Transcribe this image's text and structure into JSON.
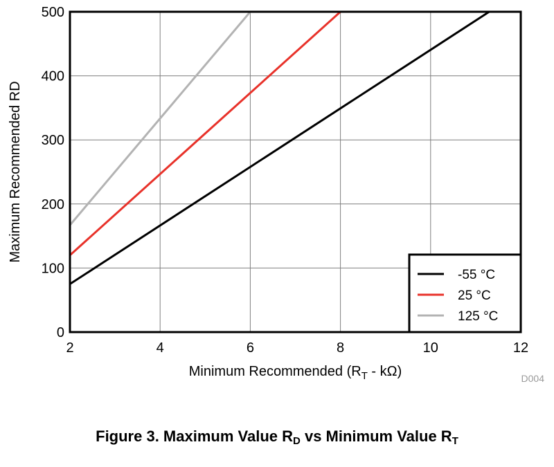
{
  "chart_data": {
    "type": "line",
    "xlabel": {
      "main": "Minimum Recommended (R",
      "sub": "T",
      "tail": " - kΩ)"
    },
    "ylabel": "Maximum Recommended RD",
    "xlim": [
      2,
      12
    ],
    "ylim": [
      0,
      500
    ],
    "xticks": [
      2,
      4,
      6,
      8,
      10,
      12
    ],
    "yticks": [
      0,
      100,
      200,
      300,
      400,
      500
    ],
    "grid": true,
    "legend_position": "bottom-right",
    "series": [
      {
        "name": "-55 °C",
        "color": "#000000",
        "x": [
          2,
          11.3
        ],
        "y": [
          75,
          500
        ]
      },
      {
        "name": "25 °C",
        "color": "#e8322a",
        "x": [
          2,
          8
        ],
        "y": [
          120,
          500
        ]
      },
      {
        "name": "125 °C",
        "color": "#b3b3b3",
        "x": [
          2,
          6
        ],
        "y": [
          167,
          500
        ]
      }
    ],
    "figure_id": "D004",
    "caption": {
      "parts": [
        {
          "text": "Figure 3. Maximum Value R"
        },
        {
          "text": "D",
          "sub": true
        },
        {
          "text": " vs Minimum Value R"
        },
        {
          "text": "T",
          "sub": true
        }
      ]
    }
  }
}
